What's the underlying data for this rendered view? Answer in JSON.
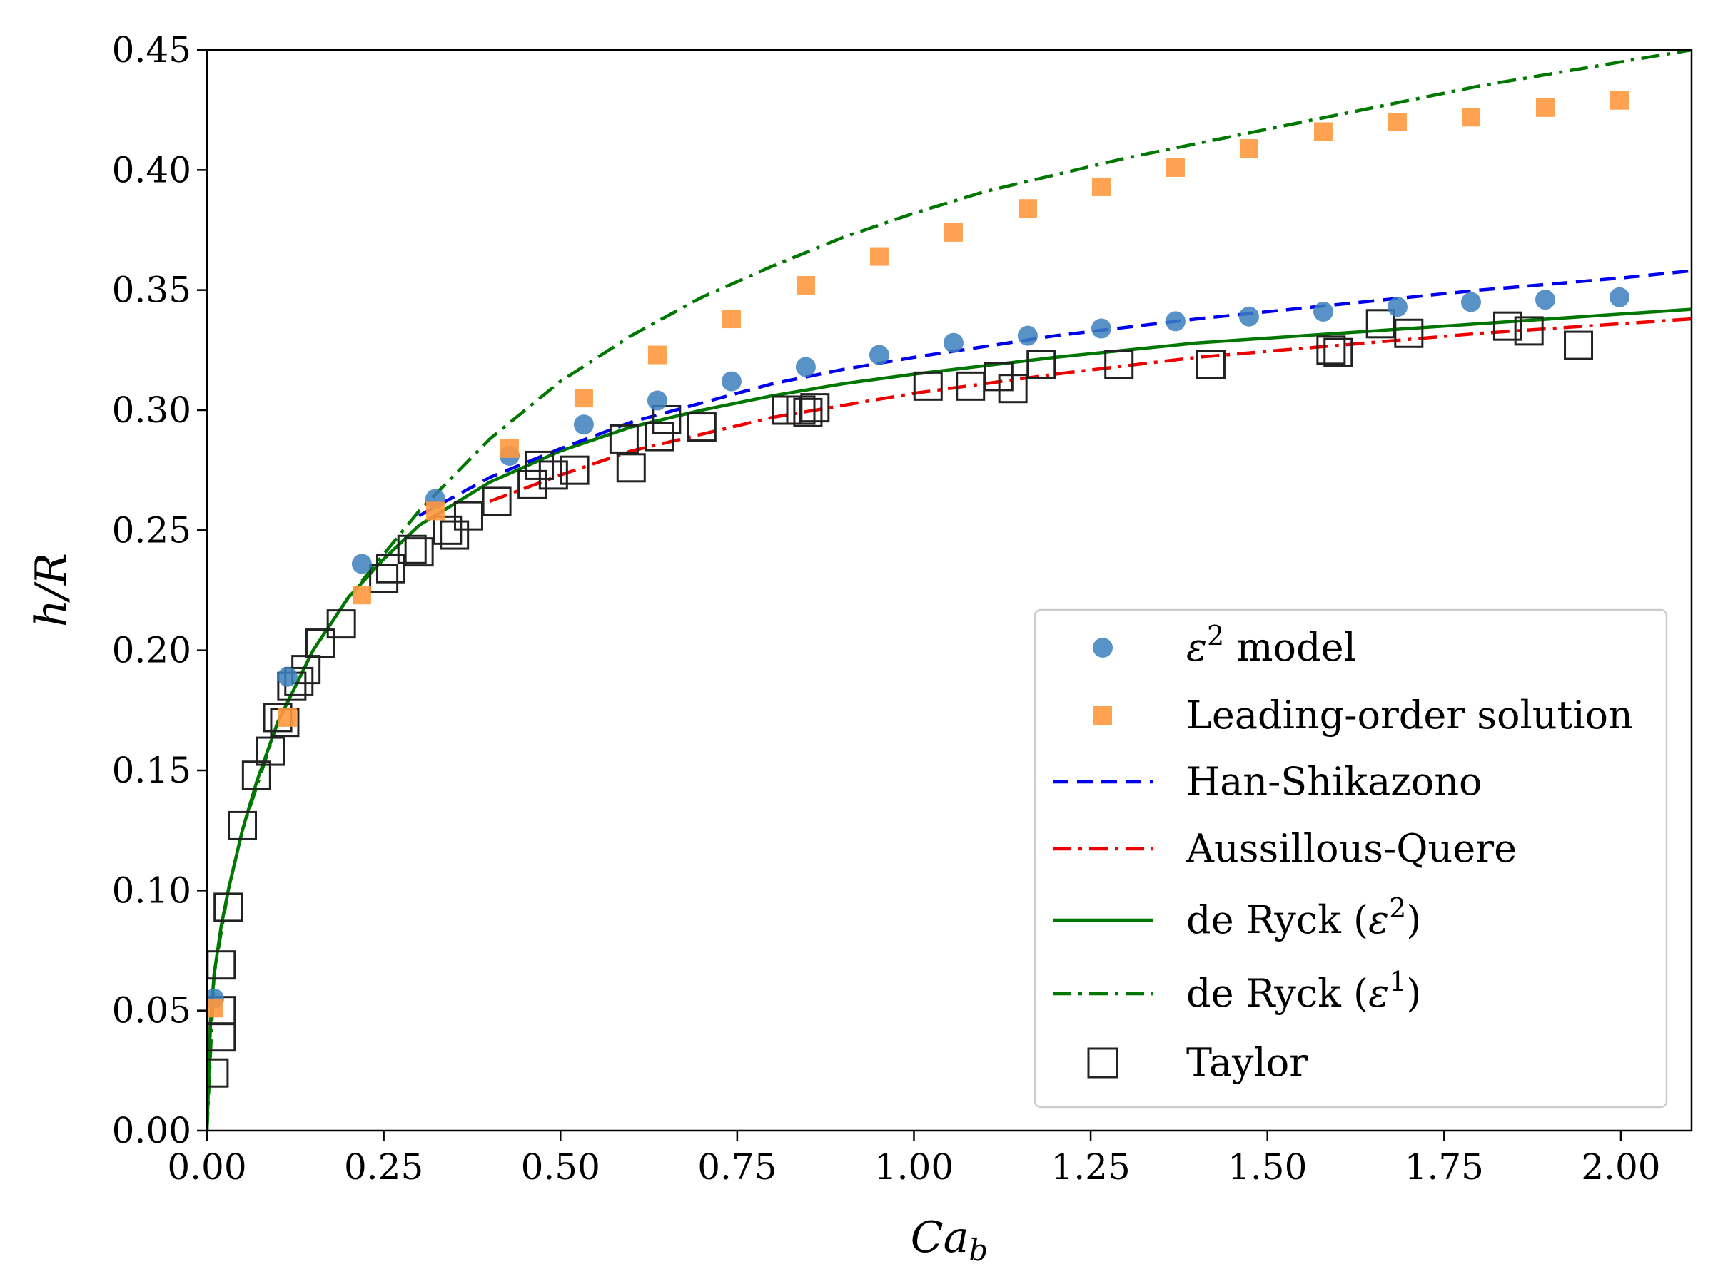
{
  "chart_data": {
    "type": "line",
    "xlabel": "Ca_b",
    "ylabel": "h/R",
    "xlim": [
      0,
      2.1
    ],
    "ylim": [
      0,
      0.45
    ],
    "x_ticks": [
      "0.00",
      "0.25",
      "0.50",
      "0.75",
      "1.00",
      "1.25",
      "1.50",
      "1.75",
      "2.00"
    ],
    "y_ticks": [
      "0.00",
      "0.05",
      "0.10",
      "0.15",
      "0.20",
      "0.25",
      "0.30",
      "0.35",
      "0.40",
      "0.45"
    ],
    "grid": false,
    "legend_position": "lower-right",
    "series": [
      {
        "name": "ε² model",
        "kind": "scatter",
        "marker": "circle",
        "color": "#3b7fbd",
        "x": [
          0.01,
          0.114,
          0.219,
          0.323,
          0.428,
          0.533,
          0.637,
          0.742,
          0.847,
          0.951,
          1.056,
          1.161,
          1.265,
          1.37,
          1.474,
          1.579,
          1.684,
          1.788,
          1.893,
          1.998
        ],
        "y": [
          0.055,
          0.189,
          0.236,
          0.263,
          0.281,
          0.294,
          0.304,
          0.312,
          0.318,
          0.323,
          0.328,
          0.331,
          0.334,
          0.337,
          0.339,
          0.341,
          0.343,
          0.345,
          0.346,
          0.347
        ]
      },
      {
        "name": "Leading-order solution",
        "kind": "scatter",
        "marker": "square",
        "color": "#ff983e",
        "x": [
          0.01,
          0.114,
          0.219,
          0.323,
          0.428,
          0.533,
          0.637,
          0.742,
          0.847,
          0.951,
          1.056,
          1.161,
          1.265,
          1.37,
          1.474,
          1.579,
          1.684,
          1.788,
          1.893,
          1.998
        ],
        "y": [
          0.051,
          0.172,
          0.223,
          0.258,
          0.284,
          0.305,
          0.323,
          0.338,
          0.352,
          0.364,
          0.374,
          0.384,
          0.393,
          0.401,
          0.409,
          0.416,
          0.42,
          0.422,
          0.426,
          0.429
        ]
      },
      {
        "name": "Han-Shikazono",
        "kind": "line",
        "dash": "dashed",
        "color": "#0000ee",
        "x": [
          0.3,
          0.4,
          0.5,
          0.6,
          0.7,
          0.8,
          0.9,
          1.0,
          1.2,
          1.4,
          1.6,
          1.8,
          2.0,
          2.1
        ],
        "y": [
          0.256,
          0.272,
          0.284,
          0.295,
          0.303,
          0.311,
          0.317,
          0.322,
          0.331,
          0.338,
          0.344,
          0.35,
          0.355,
          0.358
        ]
      },
      {
        "name": "Aussillous-Quere",
        "kind": "line",
        "dash": "dashdot",
        "color": "#ee0000",
        "x": [
          0.4,
          0.5,
          0.6,
          0.7,
          0.8,
          0.9,
          1.0,
          1.2,
          1.4,
          1.6,
          1.8,
          2.0,
          2.1
        ],
        "y": [
          0.262,
          0.273,
          0.283,
          0.29,
          0.297,
          0.302,
          0.307,
          0.315,
          0.322,
          0.327,
          0.332,
          0.336,
          0.338
        ]
      },
      {
        "name": "de Ryck (ε²)",
        "kind": "line",
        "dash": "solid",
        "color": "#007700",
        "x": [
          0.0,
          0.005,
          0.01,
          0.02,
          0.03,
          0.05,
          0.07,
          0.1,
          0.15,
          0.2,
          0.25,
          0.3,
          0.4,
          0.5,
          0.6,
          0.7,
          0.8,
          0.9,
          1.0,
          1.2,
          1.4,
          1.6,
          1.8,
          2.0,
          2.1
        ],
        "y": [
          0.0,
          0.045,
          0.065,
          0.085,
          0.1,
          0.125,
          0.145,
          0.17,
          0.2,
          0.222,
          0.238,
          0.252,
          0.27,
          0.283,
          0.293,
          0.3,
          0.306,
          0.311,
          0.315,
          0.322,
          0.328,
          0.332,
          0.336,
          0.34,
          0.342
        ]
      },
      {
        "name": "de Ryck (ε¹)",
        "kind": "line",
        "dash": "dashdot",
        "color": "#007700",
        "x": [
          0.0,
          0.01,
          0.03,
          0.05,
          0.1,
          0.15,
          0.2,
          0.25,
          0.3,
          0.4,
          0.5,
          0.6,
          0.7,
          0.8,
          0.9,
          1.0,
          1.1,
          1.2,
          1.3,
          1.4,
          1.5,
          1.6,
          1.7,
          1.8,
          1.9,
          2.0,
          2.1
        ],
        "y": [
          0.0,
          0.065,
          0.1,
          0.125,
          0.17,
          0.2,
          0.222,
          0.24,
          0.258,
          0.288,
          0.312,
          0.331,
          0.347,
          0.36,
          0.372,
          0.382,
          0.391,
          0.398,
          0.405,
          0.411,
          0.417,
          0.423,
          0.429,
          0.435,
          0.44,
          0.445,
          0.45
        ]
      },
      {
        "name": "Taylor",
        "kind": "scatter",
        "marker": "open-square",
        "color": "#222222",
        "x": [
          0.01,
          0.02,
          0.02,
          0.02,
          0.03,
          0.05,
          0.07,
          0.09,
          0.1,
          0.11,
          0.12,
          0.13,
          0.14,
          0.16,
          0.19,
          0.25,
          0.26,
          0.29,
          0.3,
          0.34,
          0.35,
          0.37,
          0.41,
          0.46,
          0.47,
          0.49,
          0.52,
          0.59,
          0.6,
          0.64,
          0.65,
          0.7,
          0.82,
          0.84,
          0.85,
          0.86,
          1.02,
          1.08,
          1.12,
          1.14,
          1.18,
          1.29,
          1.42,
          1.59,
          1.6,
          1.66,
          1.7,
          1.84,
          1.87,
          1.94
        ],
        "y": [
          0.024,
          0.039,
          0.05,
          0.069,
          0.093,
          0.127,
          0.148,
          0.158,
          0.172,
          0.17,
          0.185,
          0.187,
          0.192,
          0.203,
          0.211,
          0.23,
          0.234,
          0.242,
          0.241,
          0.25,
          0.248,
          0.256,
          0.262,
          0.269,
          0.277,
          0.273,
          0.275,
          0.288,
          0.276,
          0.289,
          0.296,
          0.293,
          0.3,
          0.3,
          0.299,
          0.301,
          0.31,
          0.31,
          0.314,
          0.309,
          0.319,
          0.319,
          0.319,
          0.325,
          0.324,
          0.336,
          0.332,
          0.335,
          0.333,
          0.327
        ]
      }
    ]
  }
}
